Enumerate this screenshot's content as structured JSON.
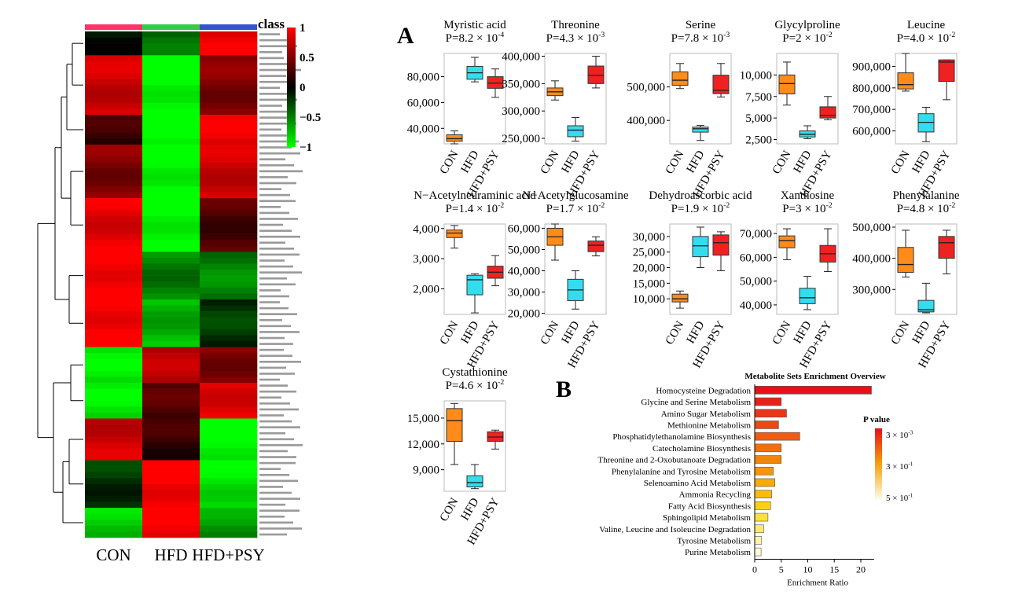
{
  "heatmap": {
    "class_label": "class",
    "groups": [
      "CON",
      "HFD",
      "HFD+PSY"
    ],
    "group_colors": [
      "#ff3366",
      "#33cc44",
      "#3355cc"
    ],
    "colorbar_ticks": [
      "1",
      "0.5",
      "0",
      "−0.5",
      "−1"
    ],
    "colorbar_values": [
      1,
      0.5,
      0,
      -0.5,
      -1
    ],
    "blocks": [
      {
        "rows": 4,
        "values": [
          -0.1,
          -0.4,
          0.9
        ]
      },
      {
        "rows": 10,
        "values": [
          0.8,
          -1,
          0.5
        ]
      },
      {
        "rows": 5,
        "values": [
          0.2,
          -1,
          0.9
        ]
      },
      {
        "rows": 9,
        "values": [
          0.5,
          -1,
          0.8
        ]
      },
      {
        "rows": 9,
        "values": [
          0.9,
          -1,
          0.3
        ]
      },
      {
        "rows": 8,
        "values": [
          1,
          -0.5,
          -0.5
        ]
      },
      {
        "rows": 8,
        "values": [
          1,
          -0.7,
          -0.2
        ]
      },
      {
        "rows": 6,
        "values": [
          -0.9,
          0.7,
          0.5
        ]
      },
      {
        "rows": 6,
        "values": [
          -0.9,
          0.3,
          0.9
        ]
      },
      {
        "rows": 7,
        "values": [
          0.8,
          0.2,
          -1
        ]
      },
      {
        "rows": 8,
        "values": [
          -0.2,
          1,
          -0.9
        ]
      },
      {
        "rows": 5,
        "values": [
          -0.8,
          1,
          -0.6
        ]
      }
    ]
  },
  "panel_a_label": "A",
  "panel_b_label": "B",
  "chart_data": [
    {
      "type": "box",
      "categories": [
        "CON",
        "HFD",
        "HFD+PSY"
      ],
      "colors": [
        "#ff8c1a",
        "#33ddee",
        "#ee2222"
      ],
      "panels": [
        {
          "title": "Myristic acid",
          "p_base": "P=8.2 × 10",
          "p_exp": "-4",
          "ylim": [
            28000,
            98000
          ],
          "ticks": [
            40000,
            60000,
            80000
          ],
          "tick_labels": [
            "40,000",
            "60,000",
            "80,000"
          ],
          "boxes": [
            [
              28000,
              30000,
              32000,
              35000,
              38000
            ],
            [
              76000,
              78000,
              83000,
              88000,
              95000
            ],
            [
              64000,
              71000,
              75000,
              80000,
              86000
            ]
          ]
        },
        {
          "title": "Threonine",
          "p_base": "P=4.3 × 10",
          "p_exp": "-3",
          "ylim": [
            240000,
            405000
          ],
          "ticks": [
            250000,
            300000,
            350000,
            400000
          ],
          "tick_labels": [
            "250,000",
            "300,000",
            "350,000",
            "400,000"
          ],
          "boxes": [
            [
              320000,
              328000,
              335000,
              342000,
              355000
            ],
            [
              245000,
              253000,
              265000,
              273000,
              288000
            ],
            [
              342000,
              350000,
              365000,
              382000,
              400000
            ]
          ]
        },
        {
          "title": "Serine",
          "p_base": "P=7.8 × 10",
          "p_exp": "-3",
          "ylim": [
            330000,
            600000
          ],
          "ticks": [
            400000,
            500000
          ],
          "tick_labels": [
            "400,000",
            "500,000"
          ],
          "boxes": [
            [
              495000,
              505000,
              520000,
              545000,
              570000
            ],
            [
              340000,
              365000,
              375000,
              380000,
              385000
            ],
            [
              470000,
              480000,
              490000,
              535000,
              570000
            ]
          ]
        },
        {
          "title": "Glycylproline",
          "p_base": "P=2 × 10",
          "p_exp": "-2",
          "ylim": [
            2000,
            12500
          ],
          "ticks": [
            2500,
            5000,
            7500,
            10000
          ],
          "tick_labels": [
            "2,500",
            "5,000",
            "7,500",
            "10,000"
          ],
          "boxes": [
            [
              6500,
              7800,
              9000,
              10000,
              11500
            ],
            [
              2600,
              2800,
              3100,
              3500,
              4100
            ],
            [
              4800,
              5000,
              5300,
              6300,
              7500
            ]
          ]
        },
        {
          "title": "Leucine",
          "p_base": "P=4.0 × 10",
          "p_exp": "-2",
          "ylim": [
            540000,
            960000
          ],
          "ticks": [
            600000,
            700000,
            800000,
            900000
          ],
          "tick_labels": [
            "600,000",
            "700,000",
            "800,000",
            "900,000"
          ],
          "boxes": [
            [
              785000,
              795000,
              815000,
              870000,
              960000
            ],
            [
              550000,
              595000,
              640000,
              680000,
              710000
            ],
            [
              745000,
              830000,
              920000,
              930000,
              930000
            ]
          ]
        },
        {
          "title": "N−Acetylneuraminic acid",
          "p_base": "P=1.4 × 10",
          "p_exp": "-2",
          "ylim": [
            1150,
            4150
          ],
          "ticks": [
            2000,
            3000,
            4000
          ],
          "tick_labels": [
            "2,000",
            "3,000",
            "4,000"
          ],
          "boxes": [
            [
              3350,
              3700,
              3850,
              3950,
              4100
            ],
            [
              1200,
              1800,
              2300,
              2450,
              2500
            ],
            [
              2100,
              2350,
              2550,
              2750,
              3100
            ]
          ]
        },
        {
          "title": "N−Acetylglucosamine",
          "p_base": "P=1.7 × 10",
          "p_exp": "-2",
          "ylim": [
            19500,
            62000
          ],
          "ticks": [
            20000,
            30000,
            40000,
            50000,
            60000
          ],
          "tick_labels": [
            "20,000",
            "30,000",
            "40,000",
            "50,000",
            "60,000"
          ],
          "boxes": [
            [
              45000,
              52000,
              56000,
              60000,
              62000
            ],
            [
              22000,
              26000,
              31000,
              36000,
              40000
            ],
            [
              47000,
              49000,
              52000,
              54000,
              56000
            ]
          ]
        },
        {
          "title": "Dehydroascorbic acid",
          "p_base": "P=1.9 × 10",
          "p_exp": "-2",
          "ylim": [
            5000,
            34000
          ],
          "ticks": [
            10000,
            15000,
            20000,
            25000,
            30000
          ],
          "tick_labels": [
            "10,000",
            "15,000",
            "20,000",
            "25,000",
            "30,000"
          ],
          "boxes": [
            [
              7000,
              9000,
              10000,
              11500,
              12500
            ],
            [
              20000,
              23500,
              27000,
              30000,
              33000
            ],
            [
              19000,
              24000,
              28000,
              30500,
              31500
            ]
          ]
        },
        {
          "title": "Xanthosine",
          "p_base": "P=3 × 10",
          "p_exp": "-2",
          "ylim": [
            36000,
            74000
          ],
          "ticks": [
            40000,
            50000,
            60000,
            70000
          ],
          "tick_labels": [
            "40,000",
            "50,000",
            "60,000",
            "70,000"
          ],
          "boxes": [
            [
              59000,
              64000,
              67000,
              69000,
              72000
            ],
            [
              38000,
              40500,
              43000,
              47000,
              52000
            ],
            [
              54000,
              58000,
              61500,
              65000,
              72000
            ]
          ]
        },
        {
          "title": "Phenylalanine",
          "p_base": "P=4.8 × 10",
          "p_exp": "-2",
          "ylim": [
            220000,
            510000
          ],
          "ticks": [
            300000,
            400000,
            500000
          ],
          "tick_labels": [
            "300,000",
            "400,000",
            "500,000"
          ],
          "boxes": [
            [
              340000,
              355000,
              380000,
              435000,
              490000
            ],
            [
              225000,
              228000,
              235000,
              265000,
              320000
            ],
            [
              350000,
              400000,
              450000,
              470000,
              490000
            ]
          ]
        },
        {
          "title": "Cystathionine",
          "p_base": "P=4.6 × 10",
          "p_exp": "-2",
          "ylim": [
            6500,
            17000
          ],
          "ticks": [
            9000,
            12000,
            15000
          ],
          "tick_labels": [
            "9,000",
            "12,000",
            "15,000"
          ],
          "boxes": [
            [
              9600,
              12300,
              14700,
              16100,
              16700
            ],
            [
              6800,
              7000,
              7500,
              8300,
              9600
            ],
            [
              11400,
              12300,
              12800,
              13400,
              13600
            ]
          ]
        }
      ]
    },
    {
      "type": "bar",
      "title": "Metabolite Sets Enrichment Overview",
      "xlabel": "Enrichment Ratio",
      "xlim": [
        0,
        22.5
      ],
      "xticks": [
        0,
        5,
        10,
        15,
        20
      ],
      "categories": [
        "Homocysteine Degradation",
        "Glycine and Serine Metabolism",
        "Amino Sugar Metabolism",
        "Methionine Metabolism",
        "Phosphatidylethanolamine Biosynthesis",
        "Catecholamine Biosynthesis",
        "Threonine and 2-Oxobutanoate Degradation",
        "Phenylalanine and Tyrosine Metabolism",
        "Selenoamino Acid Metabolism",
        "Ammonia Recycling",
        "Fatty Acid Biosynthesis",
        "Sphingolipid Metabolism",
        "Valine, Leucine and Isoleucine Degradation",
        "Tyrosine Metabolism",
        "Purine Metabolism"
      ],
      "values": [
        22,
        5,
        6,
        4.5,
        8.5,
        5,
        5,
        3.5,
        3.8,
        3.2,
        3,
        2.5,
        1.7,
        1.3,
        1.2
      ],
      "colors": [
        "#e8101a",
        "#e8201a",
        "#ea3518",
        "#ec4816",
        "#ee5c12",
        "#f07010",
        "#f2840e",
        "#f4960c",
        "#f6aa0c",
        "#f8bc0e",
        "#fad016",
        "#fbdf3a",
        "#fcea70",
        "#fdf2a8",
        "#fef9d8"
      ],
      "legend_title": "P value",
      "legend_labels": [
        {
          "base": "3 × 10",
          "exp": "-3"
        },
        {
          "base": "3 × 10",
          "exp": "-1"
        },
        {
          "base": "5 × 10",
          "exp": "-1"
        }
      ],
      "legend_placement": "right"
    }
  ]
}
